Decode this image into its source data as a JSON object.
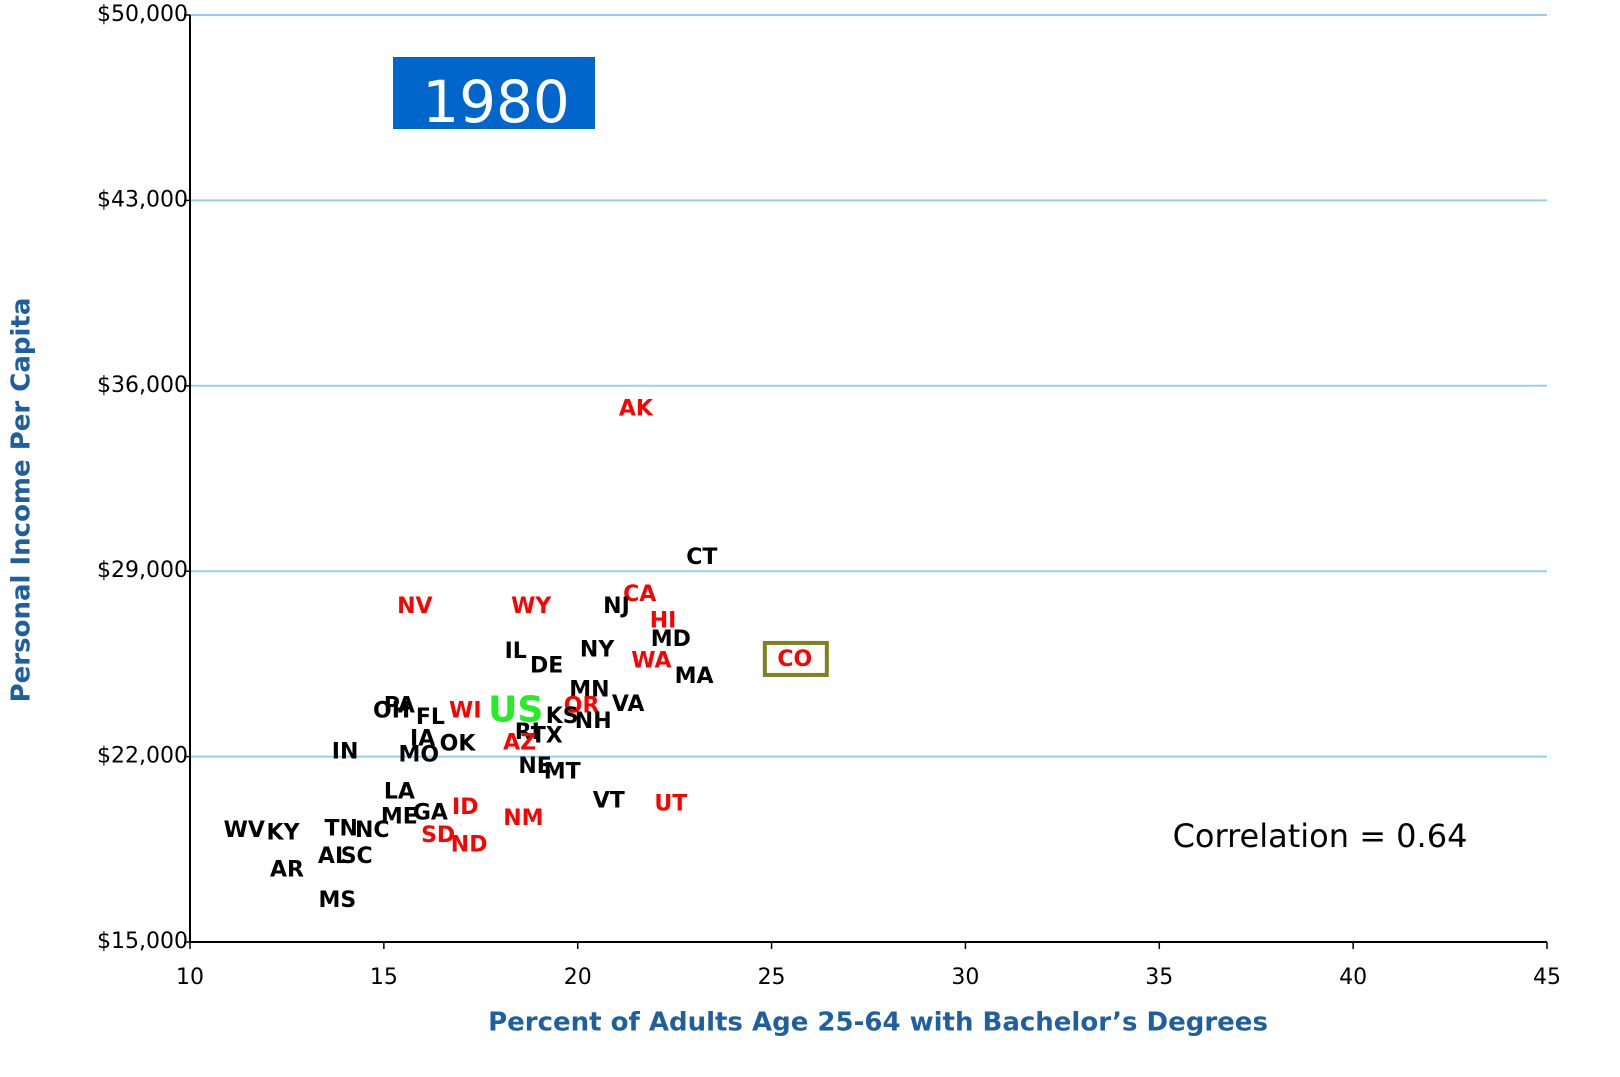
{
  "chart_data": {
    "type": "scatter",
    "badge": "1980",
    "badge_color": "#0066cc",
    "annotation": "Correlation = 0.64",
    "x_label": "Percent of Adults Age 25-64 with Bachelor’s Degrees",
    "y_label": "Personal Income Per Capita",
    "xlim": [
      10,
      45
    ],
    "xticks": [
      10,
      15,
      20,
      25,
      30,
      35,
      40,
      45
    ],
    "ylim": [
      15000,
      50000
    ],
    "yticks": [
      {
        "value": 15000,
        "label": "$15,000"
      },
      {
        "value": 22000,
        "label": "$22,000"
      },
      {
        "value": 29000,
        "label": "$29,000"
      },
      {
        "value": 36000,
        "label": "$36,000"
      },
      {
        "value": 43000,
        "label": "$43,000"
      },
      {
        "value": 50000,
        "label": "$50,000"
      }
    ],
    "grid": true,
    "grid_color": "#99ccee",
    "highlight_color": "#808020",
    "points": [
      {
        "label": "AK",
        "x": 21.5,
        "y": 35100,
        "color": "#ff0000"
      },
      {
        "label": "CT",
        "x": 23.2,
        "y": 29500,
        "color": "#000000"
      },
      {
        "label": "CA",
        "x": 21.6,
        "y": 28100,
        "color": "#ff0000"
      },
      {
        "label": "NV",
        "x": 15.8,
        "y": 27650,
        "color": "#ff0000"
      },
      {
        "label": "WY",
        "x": 18.8,
        "y": 27650,
        "color": "#ff0000"
      },
      {
        "label": "NJ",
        "x": 21.0,
        "y": 27650,
        "color": "#000000"
      },
      {
        "label": "HI",
        "x": 22.2,
        "y": 27100,
        "color": "#ff0000"
      },
      {
        "label": "MD",
        "x": 22.4,
        "y": 26400,
        "color": "#000000"
      },
      {
        "label": "IL",
        "x": 18.4,
        "y": 25950,
        "color": "#000000"
      },
      {
        "label": "NY",
        "x": 20.5,
        "y": 26000,
        "color": "#000000"
      },
      {
        "label": "DE",
        "x": 19.2,
        "y": 25400,
        "color": "#000000"
      },
      {
        "label": "WA",
        "x": 21.9,
        "y": 25600,
        "color": "#ff0000"
      },
      {
        "label": "CO",
        "x": 25.6,
        "y": 25650,
        "color": "#ff0000",
        "highlight": true
      },
      {
        "label": "MA",
        "x": 23.0,
        "y": 25000,
        "color": "#000000"
      },
      {
        "label": "MN",
        "x": 20.3,
        "y": 24500,
        "color": "#000000"
      },
      {
        "label": "VA",
        "x": 21.3,
        "y": 23950,
        "color": "#000000"
      },
      {
        "label": "OR",
        "x": 20.1,
        "y": 23900,
        "color": "#ff0000"
      },
      {
        "label": "PA",
        "x": 15.4,
        "y": 23900,
        "color": "#000000"
      },
      {
        "label": "OH",
        "x": 15.2,
        "y": 23700,
        "color": "#000000"
      },
      {
        "label": "WI",
        "x": 17.1,
        "y": 23700,
        "color": "#ff0000"
      },
      {
        "label": "US",
        "x": 18.4,
        "y": 23700,
        "color": "#22ee22",
        "size": 36
      },
      {
        "label": "FL",
        "x": 16.2,
        "y": 23450,
        "color": "#000000"
      },
      {
        "label": "KS",
        "x": 19.6,
        "y": 23500,
        "color": "#000000"
      },
      {
        "label": "NH",
        "x": 20.4,
        "y": 23300,
        "color": "#000000"
      },
      {
        "label": "RI",
        "x": 18.7,
        "y": 22900,
        "color": "#000000"
      },
      {
        "label": "TX",
        "x": 19.2,
        "y": 22750,
        "color": "#000000"
      },
      {
        "label": "IA",
        "x": 16.0,
        "y": 22650,
        "color": "#000000"
      },
      {
        "label": "AZ",
        "x": 18.5,
        "y": 22500,
        "color": "#ff0000"
      },
      {
        "label": "OK",
        "x": 16.9,
        "y": 22450,
        "color": "#000000"
      },
      {
        "label": "IN",
        "x": 14.0,
        "y": 22150,
        "color": "#000000"
      },
      {
        "label": "MO",
        "x": 15.9,
        "y": 22050,
        "color": "#000000"
      },
      {
        "label": "NE",
        "x": 18.9,
        "y": 21600,
        "color": "#000000"
      },
      {
        "label": "MT",
        "x": 19.6,
        "y": 21400,
        "color": "#000000"
      },
      {
        "label": "LA",
        "x": 15.4,
        "y": 20650,
        "color": "#000000"
      },
      {
        "label": "VT",
        "x": 20.8,
        "y": 20300,
        "color": "#000000"
      },
      {
        "label": "UT",
        "x": 22.4,
        "y": 20200,
        "color": "#ff0000"
      },
      {
        "label": "ID",
        "x": 17.1,
        "y": 20050,
        "color": "#ff0000"
      },
      {
        "label": "GA",
        "x": 16.2,
        "y": 19850,
        "color": "#000000"
      },
      {
        "label": "ME",
        "x": 15.4,
        "y": 19700,
        "color": "#000000"
      },
      {
        "label": "NM",
        "x": 18.6,
        "y": 19650,
        "color": "#ff0000"
      },
      {
        "label": "WV",
        "x": 11.4,
        "y": 19200,
        "color": "#000000"
      },
      {
        "label": "KY",
        "x": 12.4,
        "y": 19100,
        "color": "#000000"
      },
      {
        "label": "TN",
        "x": 13.9,
        "y": 19250,
        "color": "#000000"
      },
      {
        "label": "NC",
        "x": 14.7,
        "y": 19200,
        "color": "#000000"
      },
      {
        "label": "SD",
        "x": 16.4,
        "y": 19000,
        "color": "#ff0000"
      },
      {
        "label": "ND",
        "x": 17.2,
        "y": 18650,
        "color": "#ff0000"
      },
      {
        "label": "AL",
        "x": 13.7,
        "y": 18200,
        "color": "#000000"
      },
      {
        "label": "SC",
        "x": 14.3,
        "y": 18200,
        "color": "#000000"
      },
      {
        "label": "AR",
        "x": 12.5,
        "y": 17700,
        "color": "#000000"
      },
      {
        "label": "MS",
        "x": 13.8,
        "y": 16550,
        "color": "#000000"
      }
    ]
  }
}
